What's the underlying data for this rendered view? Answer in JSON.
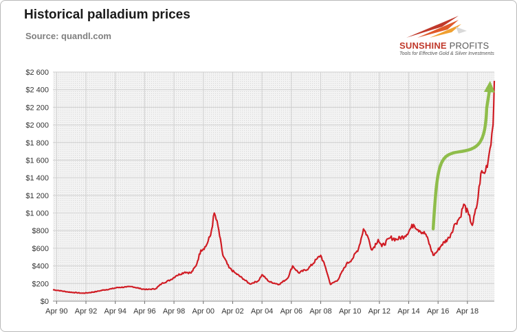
{
  "title": "Historical palladium prices",
  "source": "Source: quandl.com",
  "logo": {
    "name_part1": "SUNSHINE",
    "name_part2": "PROFITS",
    "tagline": "Tools for Effective Gold & Silver Investments"
  },
  "colors": {
    "series": "#d01c24",
    "arrow": "#8fbd4b",
    "grid": "#cfcfcf",
    "plot_bg": "#f0f0f0"
  },
  "chart_data": {
    "type": "line",
    "title": "Historical palladium prices",
    "xlabel": "",
    "ylabel": "",
    "ylim": [
      0,
      2600
    ],
    "yticks": [
      0,
      200,
      400,
      600,
      800,
      1000,
      1200,
      1400,
      1600,
      1800,
      2000,
      2200,
      2400,
      2600
    ],
    "ytick_labels": [
      "$0",
      "$200",
      "$400",
      "$600",
      "$800",
      "$1 000",
      "$1 200",
      "$1 400",
      "$1 600",
      "$1 800",
      "$2 000",
      "$2 200",
      "$2 400",
      "$2 600"
    ],
    "xlim": [
      "1990-01",
      "2020-02"
    ],
    "xticks": [
      "1990-04",
      "1992-04",
      "1994-04",
      "1996-04",
      "1998-04",
      "2000-04",
      "2002-04",
      "2004-04",
      "2006-04",
      "2008-04",
      "2010-04",
      "2012-04",
      "2014-04",
      "2016-04",
      "2018-04"
    ],
    "xtick_labels": [
      "Apr 90",
      "Apr 92",
      "Apr 94",
      "Apr 96",
      "Apr 98",
      "Apr 00",
      "Apr 02",
      "Apr 04",
      "Apr 06",
      "Apr 08",
      "Apr 10",
      "Apr 12",
      "Apr 14",
      "Apr 16",
      "Apr 18"
    ],
    "grid": true,
    "series": [
      {
        "x": [
          "1990-01",
          "1990-06",
          "1991-01",
          "1991-06",
          "1992-01",
          "1992-06",
          "1993-01",
          "1993-06",
          "1994-01",
          "1994-06",
          "1995-01",
          "1995-06",
          "1996-01",
          "1996-06",
          "1997-01",
          "1997-06",
          "1998-01",
          "1998-06",
          "1999-01",
          "1999-06",
          "1999-10",
          "2000-02",
          "2000-06",
          "2000-10",
          "2001-01",
          "2001-04",
          "2001-08",
          "2002-01",
          "2002-06",
          "2003-01",
          "2003-06",
          "2004-01",
          "2004-04",
          "2004-10",
          "2005-06",
          "2006-01",
          "2006-05",
          "2006-10",
          "2007-06",
          "2008-01",
          "2008-04",
          "2008-08",
          "2008-12",
          "2009-06",
          "2010-01",
          "2010-06",
          "2010-11",
          "2011-03",
          "2011-06",
          "2011-10",
          "2012-03",
          "2012-06",
          "2013-01",
          "2013-06",
          "2014-01",
          "2014-08",
          "2015-01",
          "2015-06",
          "2015-12",
          "2016-03",
          "2016-07",
          "2017-01",
          "2017-06",
          "2017-10",
          "2018-01",
          "2018-05",
          "2018-08",
          "2018-12",
          "2019-03",
          "2019-06",
          "2019-09",
          "2019-12",
          "2020-01",
          "2020-02"
        ],
        "values": [
          130,
          120,
          105,
          98,
          90,
          95,
          110,
          125,
          140,
          155,
          160,
          165,
          140,
          132,
          140,
          200,
          240,
          290,
          330,
          320,
          400,
          580,
          620,
          750,
          1000,
          850,
          520,
          380,
          320,
          250,
          195,
          230,
          300,
          220,
          190,
          260,
          400,
          320,
          370,
          480,
          520,
          380,
          190,
          240,
          420,
          480,
          600,
          820,
          750,
          580,
          700,
          620,
          720,
          700,
          740,
          870,
          800,
          760,
          520,
          560,
          640,
          720,
          880,
          950,
          1100,
          980,
          860,
          1100,
          1450,
          1450,
          1600,
          1900,
          2000,
          2500
        ]
      }
    ],
    "annotations": [
      {
        "type": "arrow",
        "from": [
          "2015-12",
          820
        ],
        "to": [
          "2019-10",
          2500
        ]
      }
    ]
  }
}
